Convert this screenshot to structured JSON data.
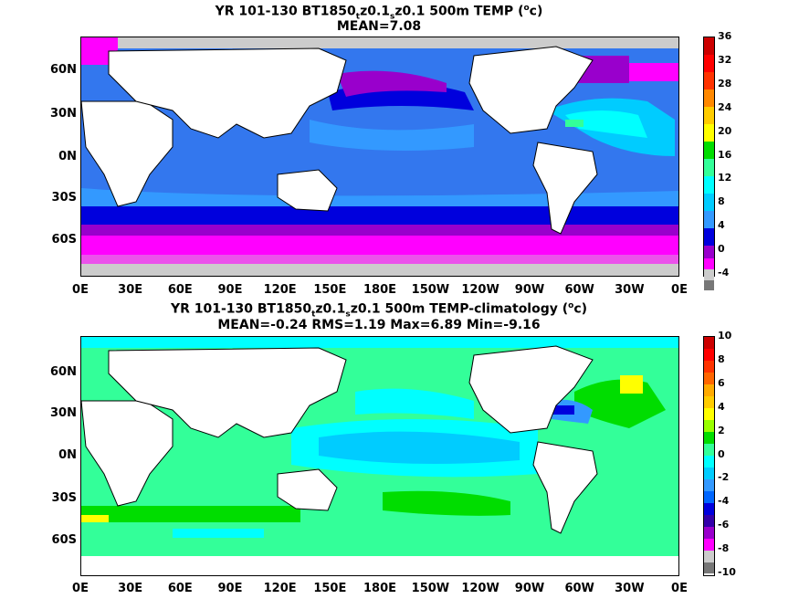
{
  "panel1": {
    "title_pre": "YR 101-130 BT1850",
    "title_sub1": "t",
    "title_mid": "z0.1",
    "title_sub2": "s",
    "title_post1": "z0.1 500m TEMP (",
    "title_sup": "o",
    "title_post2": "c)",
    "subtitle": "MEAN=7.08",
    "colorbar_labels": [
      "36",
      "32",
      "28",
      "24",
      "20",
      "16",
      "12",
      "8",
      "4",
      "0",
      "-4"
    ]
  },
  "panel2": {
    "title_pre": "YR 101-130 BT1850",
    "title_sub1": "t",
    "title_mid": "z0.1",
    "title_sub2": "s",
    "title_post1": "z0.1 500m TEMP-climatology (",
    "title_sup": "o",
    "title_post2": "c)",
    "subtitle": "MEAN=-0.24   RMS=1.19   Max=6.89   Min=-9.16",
    "colorbar_labels": [
      "10",
      "8",
      "6",
      "4",
      "2",
      "0",
      "-2",
      "-4",
      "-6",
      "-8",
      "-10"
    ]
  },
  "lat_labels": [
    "60N",
    "30N",
    "0N",
    "30S",
    "60S"
  ],
  "lon_labels": [
    "0E",
    "30E",
    "60E",
    "90E",
    "120E",
    "150E",
    "180E",
    "150W",
    "120W",
    "90W",
    "60W",
    "30W",
    "0E"
  ],
  "colors": {
    "temp_scale": [
      "#ff00ff",
      "#9900cc",
      "#0000dd",
      "#3377ee",
      "#3399ff",
      "#00ccff",
      "#00ffff",
      "#33ff99",
      "#00dd00",
      "#ffff00",
      "#ffaa00",
      "#ff6600",
      "#ff0000",
      "#cc0000"
    ],
    "anom_scale": [
      "#777777",
      "#cccccc",
      "#ff00ff",
      "#9900cc",
      "#0000dd",
      "#3399ff",
      "#00ccff",
      "#00ffff",
      "#33ff99",
      "#00dd00",
      "#99ff00",
      "#ffff00",
      "#ffaa00",
      "#ff6600",
      "#ff0000",
      "#cc0000"
    ],
    "land": "#ffffff",
    "missing": "#cccccc"
  }
}
